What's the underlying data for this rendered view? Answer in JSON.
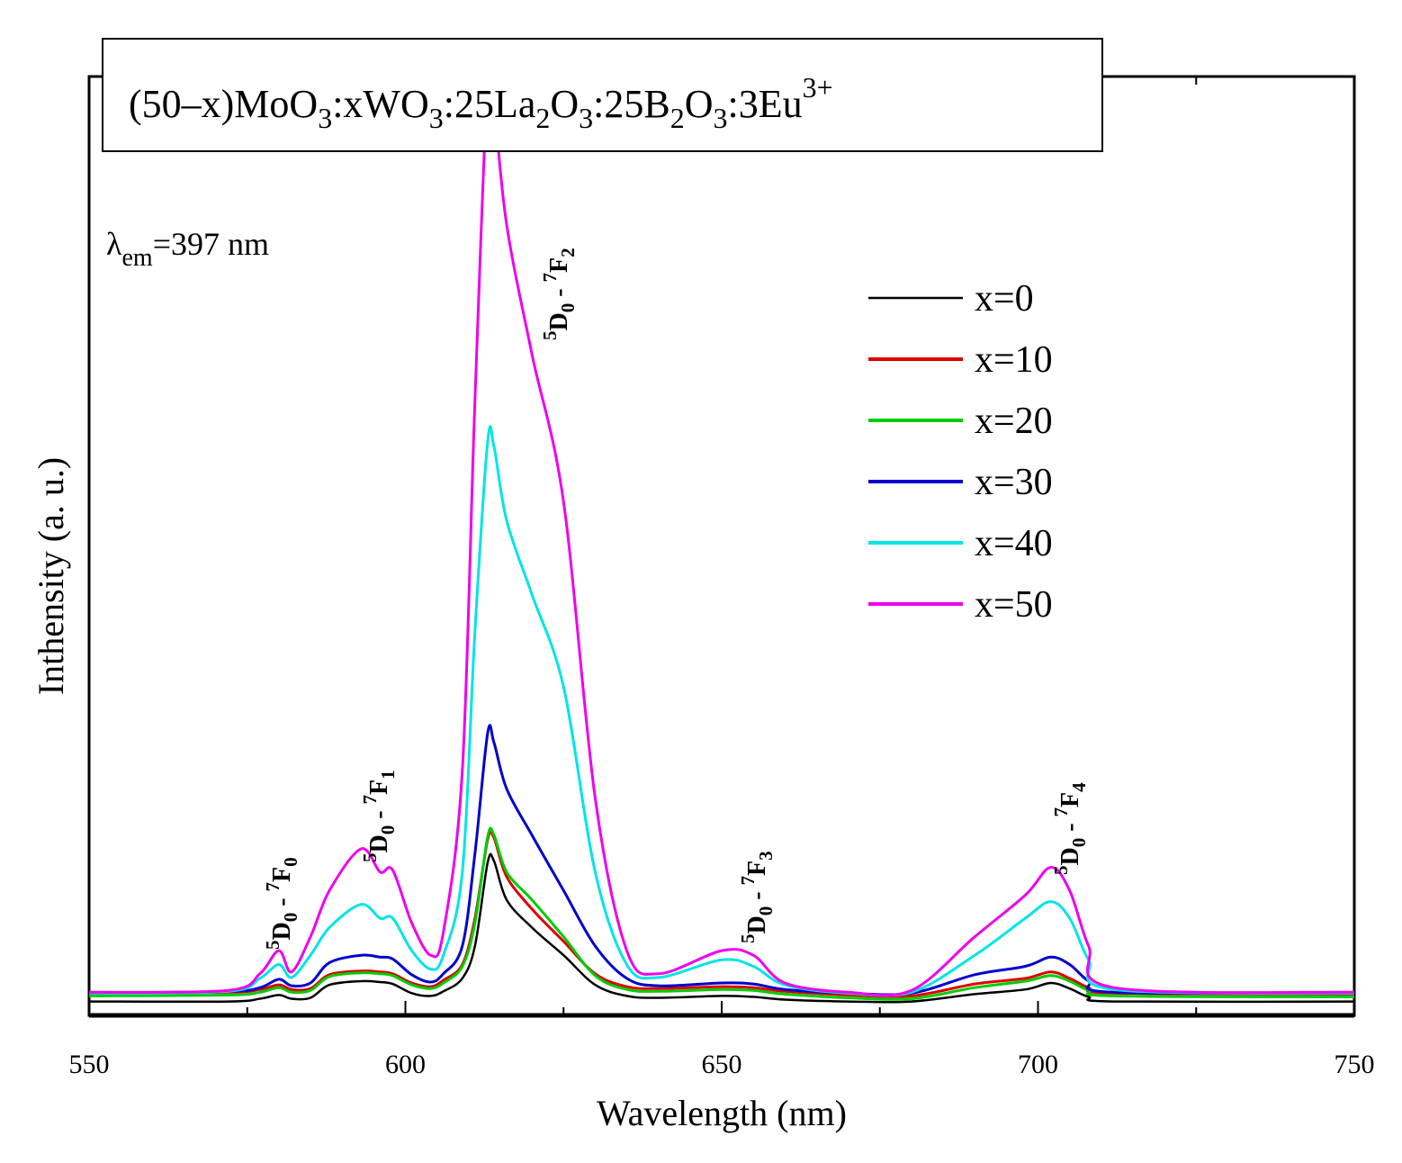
{
  "chart_data": {
    "type": "line",
    "title": {
      "prefix": "(50–x)MoO",
      "sub1": "3",
      "part2": ":xWO",
      "sub2": "3",
      "part3": ":25La",
      "sub3": "2",
      "part4": "O",
      "sub4": "3",
      "part5": ":25B",
      "sub5": "2",
      "part6": "O",
      "sub6": "3",
      "part7": ":3Eu",
      "sup": "3+"
    },
    "excitation": {
      "symbol": "λ",
      "sub": "em",
      "text": "=397 nm"
    },
    "xlabel": "Wavelength (nm)",
    "ylabel": "Inthensity (a. u.)",
    "xlim": [
      550,
      750
    ],
    "ylim": [
      -1.5,
      100
    ],
    "x_ticks": [
      550,
      600,
      650,
      700,
      750
    ],
    "x_tick_labels": [
      "550",
      "600",
      "650",
      "700",
      "750"
    ],
    "y_ticks_shown": false,
    "grid": false,
    "legend_position": "upper-right",
    "series": [
      {
        "name": "x=0",
        "color": "#000000",
        "points": [
          [
            550,
            0
          ],
          [
            572,
            0
          ],
          [
            577,
            0.3
          ],
          [
            580,
            0.7
          ],
          [
            582,
            0.3
          ],
          [
            585,
            0.4
          ],
          [
            588,
            1.8
          ],
          [
            593,
            2.2
          ],
          [
            596,
            2.1
          ],
          [
            598,
            1.9
          ],
          [
            601,
            0.9
          ],
          [
            604,
            0.6
          ],
          [
            606,
            1.1
          ],
          [
            609,
            2.5
          ],
          [
            611,
            6
          ],
          [
            613,
            15
          ],
          [
            614,
            15.2
          ],
          [
            616,
            11
          ],
          [
            620,
            8
          ],
          [
            625,
            5
          ],
          [
            630,
            1.8
          ],
          [
            635,
            0.6
          ],
          [
            640,
            0.4
          ],
          [
            650,
            0.6
          ],
          [
            655,
            0.5
          ],
          [
            660,
            0.2
          ],
          [
            670,
            0
          ],
          [
            680,
            0
          ],
          [
            690,
            0.8
          ],
          [
            698,
            1.3
          ],
          [
            702,
            2
          ],
          [
            705,
            1.4
          ],
          [
            708,
            0.5
          ],
          [
            712,
            0
          ],
          [
            750,
            0
          ]
        ]
      },
      {
        "name": "x=10",
        "color": "#dd0000",
        "points": [
          [
            550,
            0.9
          ],
          [
            572,
            1
          ],
          [
            577,
            1.3
          ],
          [
            580,
            1.8
          ],
          [
            582,
            1.3
          ],
          [
            585,
            1.4
          ],
          [
            588,
            2.9
          ],
          [
            593,
            3.3
          ],
          [
            596,
            3.2
          ],
          [
            598,
            3
          ],
          [
            601,
            2
          ],
          [
            604,
            1.6
          ],
          [
            606,
            2.3
          ],
          [
            609,
            4
          ],
          [
            611,
            9
          ],
          [
            613,
            17.5
          ],
          [
            614,
            17.7
          ],
          [
            616,
            13.5
          ],
          [
            620,
            10
          ],
          [
            625,
            6.5
          ],
          [
            630,
            3
          ],
          [
            635,
            1.6
          ],
          [
            640,
            1.4
          ],
          [
            650,
            1.6
          ],
          [
            655,
            1.5
          ],
          [
            660,
            1.1
          ],
          [
            670,
            0.7
          ],
          [
            680,
            0.6
          ],
          [
            690,
            1.9
          ],
          [
            698,
            2.5
          ],
          [
            702,
            3.2
          ],
          [
            705,
            2.5
          ],
          [
            708,
            1.5
          ],
          [
            712,
            0.9
          ],
          [
            750,
            0.8
          ]
        ]
      },
      {
        "name": "x=20",
        "color": "#00cc00",
        "points": [
          [
            550,
            0.6
          ],
          [
            572,
            0.7
          ],
          [
            577,
            1
          ],
          [
            580,
            1.5
          ],
          [
            582,
            1
          ],
          [
            585,
            1.2
          ],
          [
            588,
            2.7
          ],
          [
            593,
            3.1
          ],
          [
            596,
            3
          ],
          [
            598,
            2.8
          ],
          [
            601,
            1.8
          ],
          [
            604,
            1.4
          ],
          [
            606,
            2
          ],
          [
            609,
            3.8
          ],
          [
            611,
            8.5
          ],
          [
            613,
            17.8
          ],
          [
            614,
            18
          ],
          [
            616,
            14
          ],
          [
            620,
            11
          ],
          [
            625,
            7
          ],
          [
            630,
            2.8
          ],
          [
            635,
            1.3
          ],
          [
            640,
            1.1
          ],
          [
            650,
            1.3
          ],
          [
            655,
            1.2
          ],
          [
            660,
            0.8
          ],
          [
            670,
            0.4
          ],
          [
            680,
            0.3
          ],
          [
            690,
            1.5
          ],
          [
            698,
            2.2
          ],
          [
            702,
            2.8
          ],
          [
            705,
            2.2
          ],
          [
            708,
            1.2
          ],
          [
            712,
            0.6
          ],
          [
            750,
            0.5
          ]
        ]
      },
      {
        "name": "x=30",
        "color": "#0000cc",
        "points": [
          [
            550,
            0.9
          ],
          [
            572,
            1.1
          ],
          [
            577,
            1.5
          ],
          [
            580,
            2.4
          ],
          [
            582,
            1.7
          ],
          [
            585,
            2
          ],
          [
            588,
            4.2
          ],
          [
            593,
            5
          ],
          [
            596,
            4.8
          ],
          [
            598,
            4.6
          ],
          [
            601,
            2.9
          ],
          [
            604,
            2.1
          ],
          [
            606,
            3
          ],
          [
            609,
            6
          ],
          [
            611,
            16
          ],
          [
            613,
            29
          ],
          [
            614,
            28
          ],
          [
            616,
            23
          ],
          [
            620,
            18
          ],
          [
            625,
            12
          ],
          [
            630,
            6
          ],
          [
            635,
            2.5
          ],
          [
            640,
            1.7
          ],
          [
            650,
            2
          ],
          [
            655,
            1.9
          ],
          [
            660,
            1.3
          ],
          [
            670,
            0.9
          ],
          [
            680,
            0.9
          ],
          [
            690,
            2.9
          ],
          [
            698,
            3.8
          ],
          [
            702,
            4.8
          ],
          [
            705,
            4
          ],
          [
            708,
            2.2
          ],
          [
            712,
            1
          ],
          [
            750,
            0.9
          ]
        ]
      },
      {
        "name": "x=40",
        "color": "#00e5e5",
        "points": [
          [
            550,
            0.9
          ],
          [
            572,
            1.1
          ],
          [
            577,
            2.5
          ],
          [
            580,
            4
          ],
          [
            582,
            2.6
          ],
          [
            585,
            5
          ],
          [
            588,
            8
          ],
          [
            593,
            10.5
          ],
          [
            596,
            9
          ],
          [
            598,
            9
          ],
          [
            601,
            5.5
          ],
          [
            604,
            3.5
          ],
          [
            606,
            5
          ],
          [
            609,
            14
          ],
          [
            611,
            40
          ],
          [
            613,
            60.5
          ],
          [
            614,
            60
          ],
          [
            616,
            52
          ],
          [
            620,
            44
          ],
          [
            625,
            34
          ],
          [
            630,
            14
          ],
          [
            635,
            4
          ],
          [
            640,
            2.6
          ],
          [
            650,
            4.5
          ],
          [
            655,
            3.8
          ],
          [
            660,
            1.8
          ],
          [
            670,
            0.9
          ],
          [
            680,
            1
          ],
          [
            690,
            5
          ],
          [
            698,
            9
          ],
          [
            702,
            10.8
          ],
          [
            705,
            9
          ],
          [
            708,
            4.5
          ],
          [
            712,
            1.3
          ],
          [
            750,
            0.9
          ]
        ]
      },
      {
        "name": "x=50",
        "color": "#ee00ee",
        "points": [
          [
            550,
            1
          ],
          [
            572,
            1.2
          ],
          [
            577,
            3
          ],
          [
            580,
            5.5
          ],
          [
            582,
            3.2
          ],
          [
            585,
            7
          ],
          [
            588,
            12
          ],
          [
            593,
            16.5
          ],
          [
            596,
            14
          ],
          [
            598,
            14.2
          ],
          [
            601,
            8.5
          ],
          [
            604,
            5
          ],
          [
            606,
            7.5
          ],
          [
            609,
            25
          ],
          [
            611,
            65
          ],
          [
            613,
            99.5
          ],
          [
            614,
            97
          ],
          [
            616,
            84
          ],
          [
            620,
            70
          ],
          [
            625,
            54
          ],
          [
            630,
            22
          ],
          [
            635,
            5.5
          ],
          [
            640,
            3
          ],
          [
            650,
            5.5
          ],
          [
            655,
            5
          ],
          [
            660,
            2
          ],
          [
            670,
            1
          ],
          [
            680,
            1.2
          ],
          [
            690,
            7
          ],
          [
            698,
            11.5
          ],
          [
            702,
            14.5
          ],
          [
            705,
            12
          ],
          [
            708,
            6
          ],
          [
            712,
            1.5
          ],
          [
            750,
            1
          ]
        ]
      }
    ],
    "annotations": [
      {
        "pre": "5",
        "sub1": "D",
        "sub1s": "0",
        "mid": " - ",
        "pre2": "7",
        "sub2": "F",
        "sub2s": "0"
      },
      {
        "pre": "5",
        "sub1": "D",
        "sub1s": "0",
        "mid": " - ",
        "pre2": "7",
        "sub2": "F",
        "sub2s": "1"
      },
      {
        "pre": "5",
        "sub1": "D",
        "sub1s": "0",
        "mid": " - ",
        "pre2": "7",
        "sub2": "F",
        "sub2s": "2"
      },
      {
        "pre": "5",
        "sub1": "D",
        "sub1s": "0",
        "mid": " - ",
        "pre2": "7",
        "sub2": "F",
        "sub2s": "3"
      },
      {
        "pre": "5",
        "sub1": "D",
        "sub1s": "0",
        "mid": " - ",
        "pre2": "7",
        "sub2": "F",
        "sub2s": "4"
      }
    ]
  }
}
